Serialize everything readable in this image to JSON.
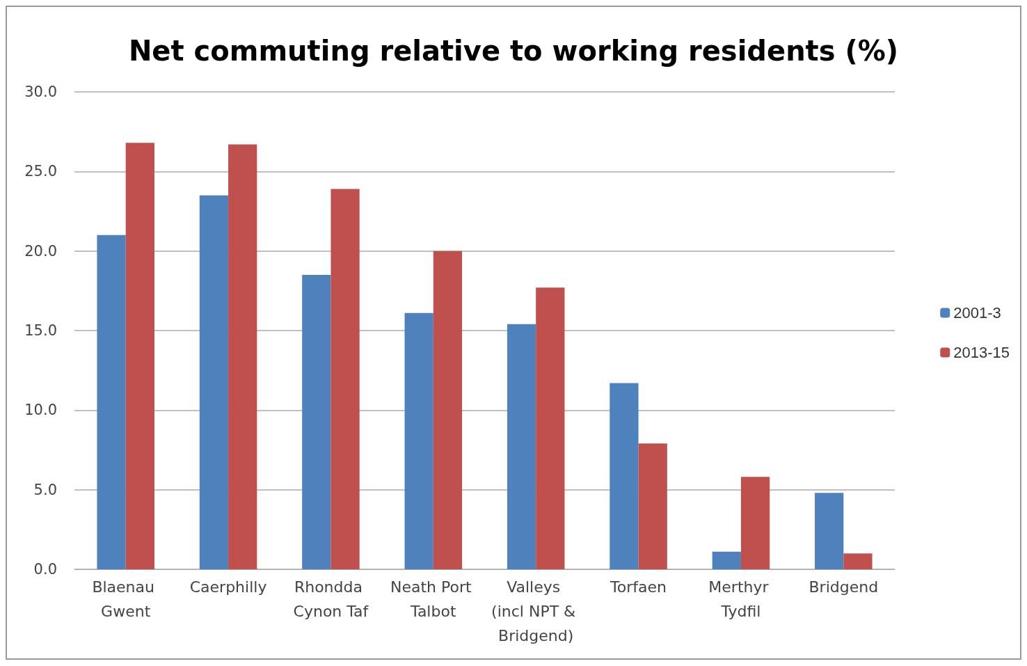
{
  "chart_data": {
    "type": "bar",
    "title": "Net commuting relative to working residents (%)",
    "categories": [
      "Blaenau Gwent",
      "Caerphilly",
      "Rhondda Cynon Taf",
      "Neath Port Talbot",
      "Valleys (incl NPT & Bridgend)",
      "Torfaen",
      "Merthyr Tydfil",
      "Bridgend"
    ],
    "series": [
      {
        "name": "2001-3",
        "color": "#4f81bd",
        "values": [
          21.0,
          23.5,
          18.5,
          16.1,
          15.4,
          11.7,
          1.1,
          4.8
        ]
      },
      {
        "name": "2013-15",
        "color": "#c0504d",
        "values": [
          26.8,
          26.7,
          23.9,
          20.0,
          17.7,
          7.9,
          5.8,
          1.0
        ]
      }
    ],
    "ylim": [
      0,
      30
    ],
    "yticks": [
      {
        "value": 0,
        "label": "0.0"
      },
      {
        "value": 5,
        "label": "5.0"
      },
      {
        "value": 10,
        "label": "10.0"
      },
      {
        "value": 15,
        "label": "15.0"
      },
      {
        "value": 20,
        "label": "20.0"
      },
      {
        "value": 25,
        "label": "25.0"
      },
      {
        "value": 30,
        "label": "30.0"
      }
    ],
    "grid": "y",
    "legend": "right"
  }
}
